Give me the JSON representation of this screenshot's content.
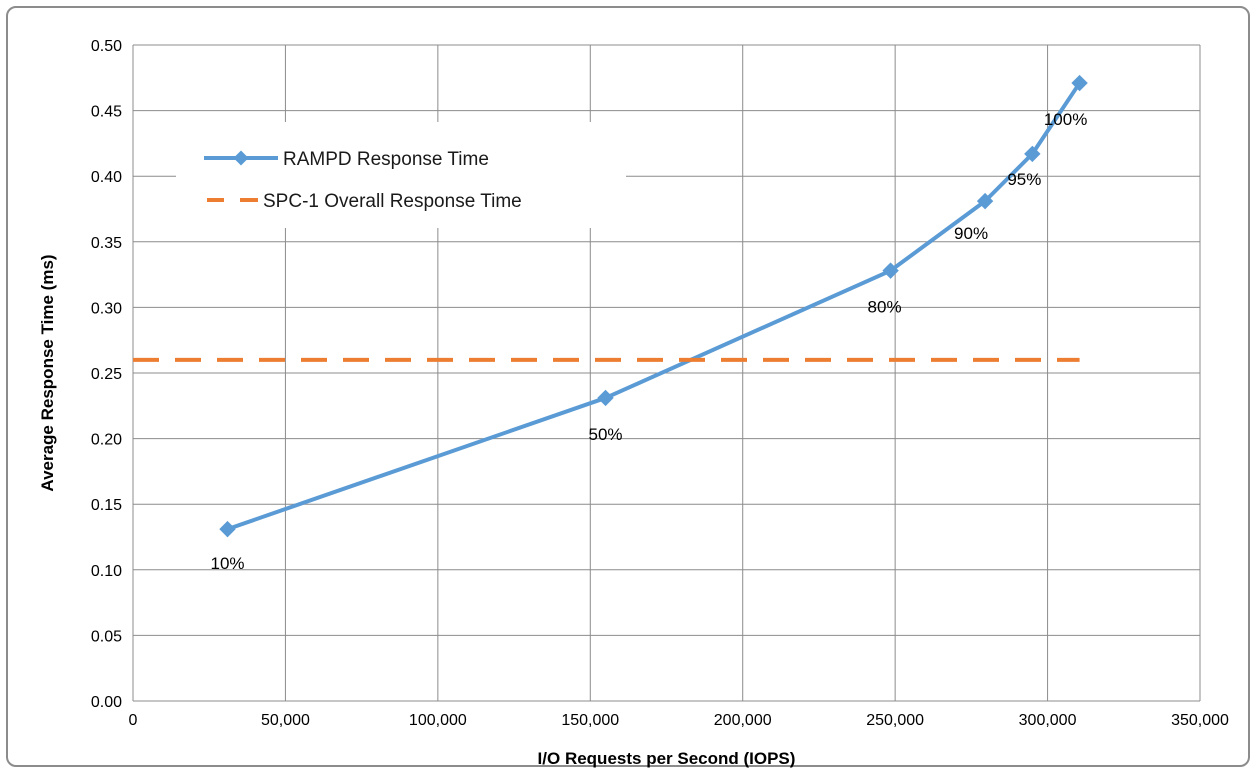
{
  "chart_data": {
    "type": "line",
    "xlabel": "I/O Requests per Second (IOPS)",
    "ylabel": "Average Response Time (ms)",
    "xlim": [
      0,
      350000
    ],
    "ylim": [
      0,
      0.5
    ],
    "x_ticks": [
      0,
      50000,
      100000,
      150000,
      200000,
      250000,
      300000,
      350000
    ],
    "x_tick_labels": [
      "0",
      "50,000",
      "100,000",
      "150,000",
      "200,000",
      "250,000",
      "300,000",
      "350,000"
    ],
    "y_ticks": [
      0,
      0.05,
      0.1,
      0.15,
      0.2,
      0.25,
      0.3,
      0.35,
      0.4,
      0.45,
      0.5
    ],
    "y_tick_labels": [
      "0.00",
      "0.05",
      "0.10",
      "0.15",
      "0.20",
      "0.25",
      "0.30",
      "0.35",
      "0.40",
      "0.45",
      "0.50"
    ],
    "grid": true,
    "legend_position": "top-left",
    "series": [
      {
        "name": "RAMPD Response Time",
        "color": "#5b9bd5",
        "marker": "diamond",
        "style": "solid",
        "x": [
          31000,
          155000,
          248500,
          279500,
          295000,
          310500
        ],
        "y": [
          0.131,
          0.231,
          0.328,
          0.381,
          0.417,
          0.471
        ],
        "labels": [
          "10%",
          "50%",
          "80%",
          "90%",
          "95%",
          "100%"
        ]
      },
      {
        "name": "SPC-1 Overall Response Time",
        "color": "#ed7d31",
        "style": "dashed",
        "x": [
          0,
          310500
        ],
        "y": [
          0.26,
          0.26
        ]
      }
    ]
  }
}
